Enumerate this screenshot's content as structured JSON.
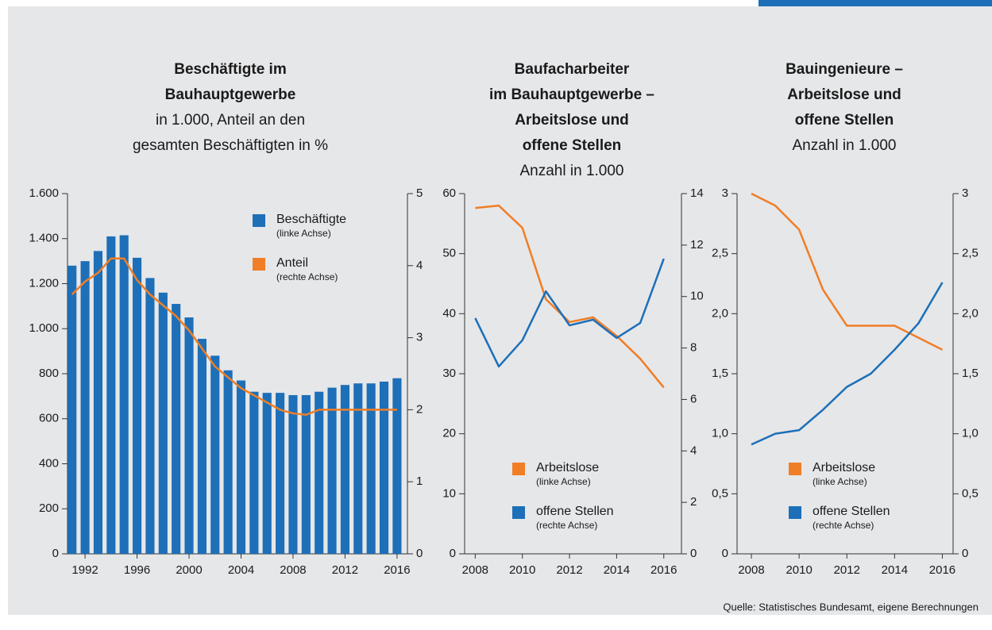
{
  "chart_data": [
    {
      "type": "bar",
      "title": [
        "Beschäftigte im",
        "Bauhauptgewerbe"
      ],
      "subtitle": [
        "in 1.000, Anteil an den",
        "gesamten Beschäftigten in %"
      ],
      "x": [
        1991,
        1992,
        1993,
        1994,
        1995,
        1996,
        1997,
        1998,
        1999,
        2000,
        2001,
        2002,
        2003,
        2004,
        2005,
        2006,
        2007,
        2008,
        2009,
        2010,
        2011,
        2012,
        2013,
        2014,
        2015,
        2016
      ],
      "xlim": [
        1990.65,
        2016.8
      ],
      "xticks": [
        1992,
        1996,
        2000,
        2004,
        2008,
        2012,
        2016
      ],
      "ylim": [
        0,
        1600
      ],
      "yticks": [
        0,
        200,
        400,
        600,
        800,
        {
          "value": 1000,
          "label": "1.000"
        },
        {
          "value": 1200,
          "label": "1.200"
        },
        {
          "value": 1400,
          "label": "1.400"
        },
        {
          "value": 1600,
          "label": "1.600"
        }
      ],
      "y2lim": [
        0,
        5
      ],
      "y2ticks": [
        0,
        1,
        2,
        3,
        4,
        5
      ],
      "series": [
        {
          "name": "Beschäftigte",
          "note": "(linke Achse)",
          "type": "bar",
          "color": "#1d6fb8",
          "values": [
            1280,
            1300,
            1345,
            1410,
            1415,
            1315,
            1225,
            1160,
            1110,
            1050,
            955,
            880,
            815,
            770,
            720,
            715,
            715,
            705,
            705,
            720,
            738,
            750,
            757,
            757,
            765,
            780
          ]
        },
        {
          "name": "Anteil",
          "note": "(rechte Achse)",
          "type": "line",
          "axis": "y2",
          "color": "#f07e26",
          "values": [
            3.6,
            3.78,
            3.9,
            4.1,
            4.1,
            3.8,
            3.6,
            3.45,
            3.3,
            3.1,
            2.85,
            2.6,
            2.45,
            2.3,
            2.2,
            2.1,
            2.0,
            1.95,
            1.93,
            2.0,
            2.0,
            2.0,
            2.0,
            2.0,
            2.0,
            2.0
          ]
        }
      ]
    },
    {
      "type": "line",
      "title": [
        "Baufacharbeiter",
        "im Bauhauptgewerbe –",
        "Arbeitslose und",
        "offene Stellen"
      ],
      "subtitle": [
        "Anzahl in 1.000"
      ],
      "x": [
        2008,
        2009,
        2010,
        2011,
        2012,
        2013,
        2014,
        2015,
        2016
      ],
      "xlim": [
        2007.55,
        2016.75
      ],
      "xticks": [
        2008,
        2010,
        2012,
        2014,
        2016
      ],
      "ylim": [
        0,
        60
      ],
      "yticks": [
        0,
        10,
        20,
        30,
        40,
        50,
        60
      ],
      "y2lim": [
        0,
        14
      ],
      "y2ticks": [
        0,
        2,
        4,
        6,
        8,
        10,
        12,
        14
      ],
      "series": [
        {
          "name": "Arbeitslose",
          "note": "(linke Achse)",
          "type": "line",
          "color": "#f07e26",
          "values": [
            57.6,
            58,
            54.3,
            42.4,
            38.6,
            39.4,
            36.3,
            32.5,
            27.7
          ]
        },
        {
          "name": "offene Stellen",
          "note": "(rechte Achse)",
          "type": "line",
          "axis": "y2",
          "color": "#1d6fb8",
          "values": [
            9.16,
            7.28,
            8.3,
            10.2,
            8.88,
            9.1,
            8.39,
            8.97,
            11.47
          ]
        }
      ]
    },
    {
      "type": "line",
      "title": [
        "Bauingenieure –",
        "Arbeitslose und",
        "offene Stellen"
      ],
      "subtitle": [
        "Anzahl in 1.000"
      ],
      "x": [
        2008,
        2009,
        2010,
        2011,
        2012,
        2013,
        2014,
        2015,
        2016
      ],
      "xlim": [
        2007.4,
        2016.45
      ],
      "xticks": [
        2008,
        2010,
        2012,
        2014,
        2016
      ],
      "ylim": [
        0,
        3
      ],
      "yticks": [
        0,
        {
          "value": 0.5,
          "label": "0,5"
        },
        {
          "value": 1,
          "label": "1,0"
        },
        {
          "value": 1.5,
          "label": "1,5"
        },
        {
          "value": 2,
          "label": "2,0"
        },
        {
          "value": 2.5,
          "label": "2,5"
        },
        3
      ],
      "y2lim": [
        0,
        3
      ],
      "y2ticks": [
        0,
        {
          "value": 0.5,
          "label": "0,5"
        },
        {
          "value": 1,
          "label": "1,0"
        },
        {
          "value": 1.5,
          "label": "1,5"
        },
        {
          "value": 2,
          "label": "2,0"
        },
        {
          "value": 2.5,
          "label": "2,5"
        },
        3
      ],
      "series": [
        {
          "name": "Arbeitslose",
          "note": "(linke Achse)",
          "type": "line",
          "color": "#f07e26",
          "values": [
            3.0,
            2.9,
            2.7,
            2.2,
            1.9,
            1.9,
            1.9,
            1.8,
            1.7
          ]
        },
        {
          "name": "offene Stellen",
          "note": "(rechte Achse)",
          "type": "line",
          "axis": "y2",
          "color": "#1d6fb8",
          "values": [
            0.91,
            1.0,
            1.03,
            1.2,
            1.39,
            1.5,
            1.7,
            1.92,
            2.26
          ]
        }
      ]
    }
  ],
  "source": "Quelle: Statistisches Bundesamt, eigene Berechnungen"
}
